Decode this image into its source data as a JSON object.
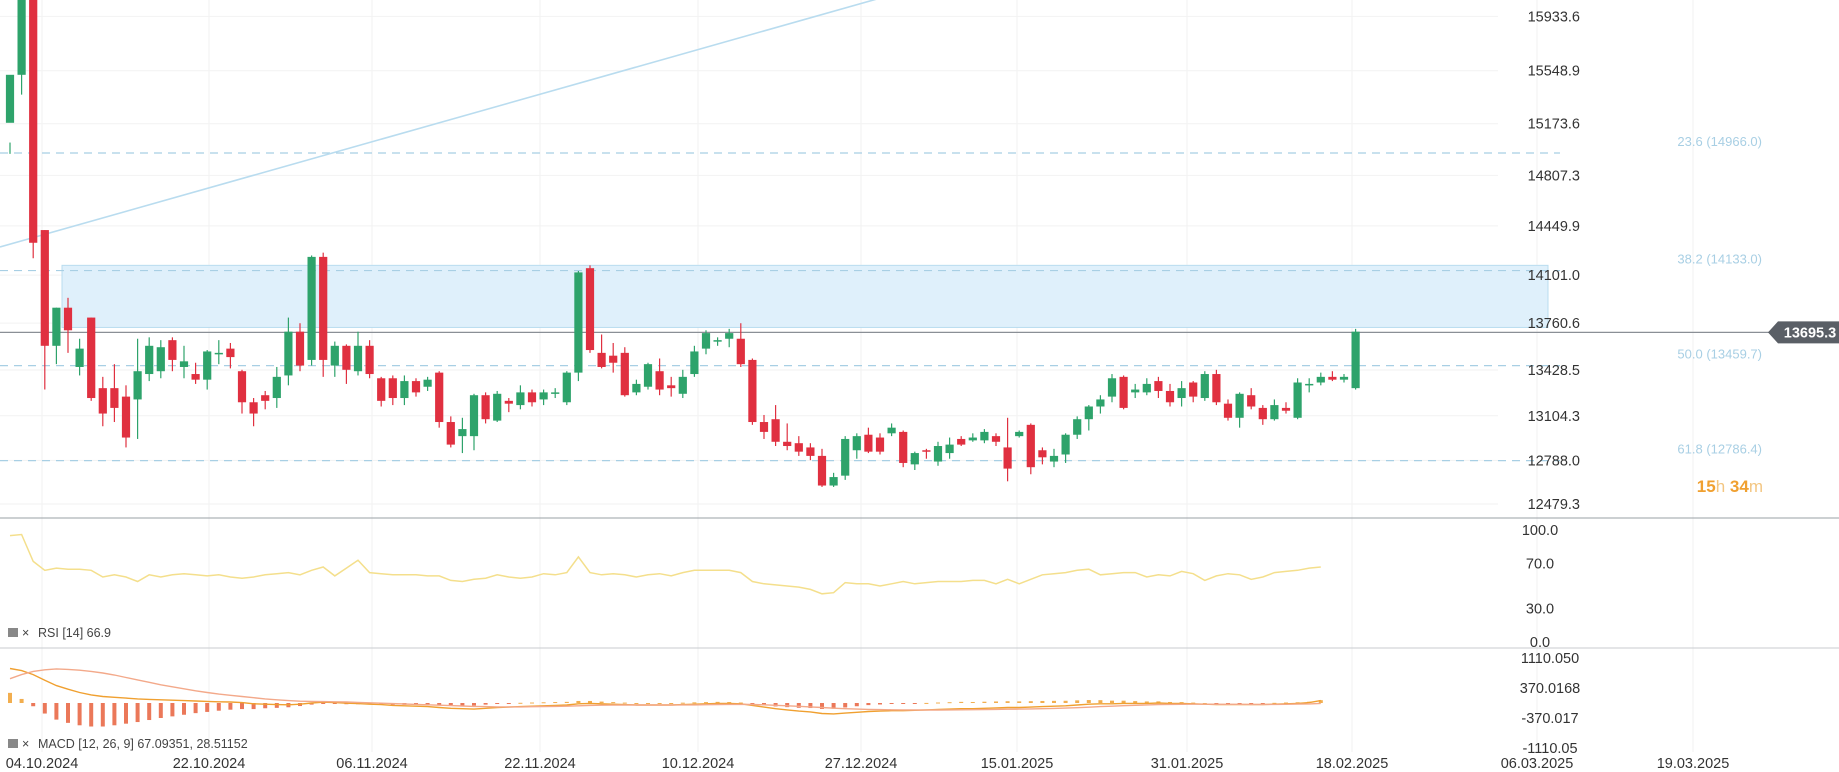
{
  "chart_data": {
    "type": "candlestick",
    "x_dates": [
      "04.10.2024",
      "22.10.2024",
      "06.11.2024",
      "22.11.2024",
      "10.12.2024",
      "27.12.2024",
      "15.01.2025",
      "31.01.2025",
      "18.02.2025",
      "06.03.2025",
      "19.03.2025"
    ],
    "price_ticks": [
      "15933.6",
      "15548.9",
      "15173.6",
      "14807.3",
      "14449.9",
      "14101.0",
      "13760.6",
      "13428.5",
      "13104.3",
      "12788.0",
      "12479.3"
    ],
    "current_price": "13695.3",
    "countdown": {
      "hours": "15",
      "h": "h",
      "minutes": "34",
      "m": "m"
    },
    "fib_levels": [
      {
        "label": "23.6 (14966.0)",
        "value": 14966.0
      },
      {
        "label": "38.2 (14133.0)",
        "value": 14133.0
      },
      {
        "label": "50.0 (13459.7)",
        "value": 13459.7
      },
      {
        "label": "61.8 (12786.4)",
        "value": 12786.4
      }
    ],
    "zone": {
      "top": 14170,
      "bottom": 13730
    },
    "trendline": {
      "from": {
        "x_index": 0,
        "price": 14300
      },
      "to": {
        "x_index": 80,
        "price": 16500
      }
    },
    "colors": {
      "up": "#2ea36b",
      "down": "#e03040",
      "fib": "#a8cfe4",
      "zone": "#dff0fb",
      "rsi": "#f4df8c",
      "macd_signal": "#f3a98a",
      "macd_line": "#f0a030",
      "badge": "#5a5f66"
    },
    "candles": [
      [
        15180,
        15520,
        15040,
        14960
      ],
      [
        15520,
        16330,
        15380,
        16330
      ],
      [
        16330,
        14330,
        16330,
        14220
      ],
      [
        14420,
        13600,
        14420,
        13290
      ],
      [
        13600,
        13870,
        13470,
        13870
      ],
      [
        13870,
        13710,
        13940,
        13550
      ],
      [
        13450,
        13580,
        13650,
        13390
      ],
      [
        13800,
        13230,
        13800,
        13210
      ],
      [
        13300,
        13120,
        13380,
        13030
      ],
      [
        13300,
        13160,
        13470,
        13060
      ],
      [
        13240,
        12950,
        13320,
        12880
      ],
      [
        13220,
        13420,
        13650,
        12940
      ],
      [
        13400,
        13600,
        13660,
        13350
      ],
      [
        13420,
        13590,
        13640,
        13370
      ],
      [
        13640,
        13500,
        13660,
        13420
      ],
      [
        13450,
        13490,
        13600,
        13370
      ],
      [
        13400,
        13360,
        13480,
        13330
      ],
      [
        13360,
        13560,
        13570,
        13290
      ],
      [
        13540,
        13550,
        13640,
        13470
      ],
      [
        13580,
        13520,
        13620,
        13440
      ],
      [
        13420,
        13200,
        13430,
        13120
      ],
      [
        13200,
        13120,
        13230,
        13030
      ],
      [
        13250,
        13210,
        13280,
        13150
      ],
      [
        13230,
        13380,
        13450,
        13160
      ],
      [
        13390,
        13700,
        13800,
        13320
      ],
      [
        13700,
        13460,
        13760,
        13420
      ],
      [
        13500,
        14230,
        14240,
        13460
      ],
      [
        14230,
        13500,
        14260,
        13380
      ],
      [
        13460,
        13600,
        13630,
        13380
      ],
      [
        13600,
        13430,
        13610,
        13330
      ],
      [
        13420,
        13600,
        13700,
        13390
      ],
      [
        13600,
        13400,
        13640,
        13370
      ],
      [
        13370,
        13210,
        13380,
        13170
      ],
      [
        13370,
        13230,
        13390,
        13180
      ],
      [
        13230,
        13350,
        13390,
        13180
      ],
      [
        13350,
        13270,
        13370,
        13240
      ],
      [
        13310,
        13360,
        13380,
        13280
      ],
      [
        13410,
        13060,
        13420,
        13020
      ],
      [
        13060,
        12900,
        13100,
        12880
      ],
      [
        12960,
        13010,
        13090,
        12840
      ],
      [
        12960,
        13250,
        13260,
        12860
      ],
      [
        13250,
        13080,
        13270,
        13050
      ],
      [
        13070,
        13260,
        13280,
        13060
      ],
      [
        13210,
        13190,
        13230,
        13130
      ],
      [
        13180,
        13270,
        13320,
        13150
      ],
      [
        13270,
        13200,
        13290,
        13170
      ],
      [
        13220,
        13270,
        13290,
        13180
      ],
      [
        13260,
        13270,
        13300,
        13230
      ],
      [
        13200,
        13410,
        13420,
        13180
      ],
      [
        13410,
        14120,
        14130,
        13350
      ],
      [
        14150,
        13570,
        14170,
        13550
      ],
      [
        13550,
        13450,
        13680,
        13440
      ],
      [
        13530,
        13480,
        13620,
        13410
      ],
      [
        13550,
        13250,
        13590,
        13240
      ],
      [
        13270,
        13330,
        13360,
        13250
      ],
      [
        13310,
        13470,
        13480,
        13290
      ],
      [
        13420,
        13290,
        13510,
        13250
      ],
      [
        13320,
        13300,
        13380,
        13240
      ],
      [
        13260,
        13380,
        13430,
        13230
      ],
      [
        13400,
        13560,
        13600,
        13380
      ],
      [
        13580,
        13690,
        13710,
        13540
      ],
      [
        13640,
        13640,
        13660,
        13600
      ],
      [
        13650,
        13690,
        13720,
        13590
      ],
      [
        13650,
        13470,
        13760,
        13450
      ],
      [
        13500,
        13060,
        13510,
        13040
      ],
      [
        13060,
        12990,
        13110,
        12940
      ],
      [
        13080,
        12920,
        13180,
        12890
      ],
      [
        12920,
        12890,
        13050,
        12860
      ],
      [
        12910,
        12850,
        12960,
        12820
      ],
      [
        12880,
        12820,
        12910,
        12790
      ],
      [
        12820,
        12610,
        12870,
        12600
      ],
      [
        12610,
        12670,
        12700,
        12600
      ],
      [
        12680,
        12940,
        12960,
        12650
      ],
      [
        12860,
        12960,
        12980,
        12800
      ],
      [
        12970,
        12850,
        13020,
        12840
      ],
      [
        12950,
        12850,
        12980,
        12830
      ],
      [
        12980,
        13020,
        13050,
        12960
      ],
      [
        12990,
        12770,
        13000,
        12740
      ],
      [
        12760,
        12840,
        12850,
        12720
      ],
      [
        12860,
        12850,
        12870,
        12800
      ],
      [
        12780,
        12890,
        12920,
        12750
      ],
      [
        12840,
        12900,
        12950,
        12800
      ],
      [
        12940,
        12900,
        12960,
        12890
      ],
      [
        12930,
        12950,
        12980,
        12920
      ],
      [
        12930,
        12990,
        13010,
        12910
      ],
      [
        12960,
        12920,
        12980,
        12890
      ],
      [
        12880,
        12730,
        13090,
        12640
      ],
      [
        12960,
        12990,
        13000,
        12950
      ],
      [
        13040,
        12740,
        13050,
        12690
      ],
      [
        12860,
        12810,
        12880,
        12760
      ],
      [
        12780,
        12820,
        12870,
        12740
      ],
      [
        12830,
        12970,
        12980,
        12770
      ],
      [
        12970,
        13080,
        13100,
        12940
      ],
      [
        13080,
        13170,
        13180,
        13000
      ],
      [
        13170,
        13220,
        13250,
        13120
      ],
      [
        13240,
        13370,
        13400,
        13200
      ],
      [
        13380,
        13160,
        13390,
        13150
      ],
      [
        13270,
        13290,
        13330,
        13230
      ],
      [
        13270,
        13330,
        13370,
        13250
      ],
      [
        13350,
        13280,
        13380,
        13230
      ],
      [
        13280,
        13200,
        13330,
        13170
      ],
      [
        13230,
        13300,
        13350,
        13170
      ],
      [
        13340,
        13240,
        13350,
        13200
      ],
      [
        13230,
        13400,
        13420,
        13210
      ],
      [
        13400,
        13200,
        13430,
        13180
      ],
      [
        13190,
        13090,
        13220,
        13070
      ],
      [
        13090,
        13260,
        13270,
        13020
      ],
      [
        13250,
        13170,
        13300,
        13150
      ],
      [
        13160,
        13080,
        13180,
        13040
      ],
      [
        13080,
        13180,
        13220,
        13070
      ],
      [
        13160,
        13140,
        13200,
        13120
      ],
      [
        13090,
        13340,
        13370,
        13080
      ],
      [
        13330,
        13330,
        13370,
        13270
      ],
      [
        13340,
        13380,
        13410,
        13320
      ],
      [
        13380,
        13360,
        13420,
        13350
      ],
      [
        13360,
        13380,
        13400,
        13340
      ],
      [
        13300,
        13700,
        13720,
        13290
      ]
    ],
    "rsi": {
      "label": "RSI",
      "params": "[14]",
      "value": "66.9",
      "ticks": [
        "100.0",
        "70.0",
        "30.0",
        "0.0"
      ],
      "values": [
        95,
        96,
        72,
        64,
        66,
        65,
        65,
        64,
        58,
        60,
        58,
        54,
        60,
        58,
        60,
        61,
        60,
        59,
        60,
        58,
        57,
        58,
        60,
        61,
        62,
        60,
        64,
        67,
        59,
        66,
        73,
        62,
        61,
        60,
        60,
        60,
        59,
        59,
        55,
        54,
        56,
        57,
        60,
        58,
        57,
        58,
        61,
        60,
        62,
        76,
        62,
        60,
        61,
        60,
        58,
        60,
        61,
        59,
        62,
        64,
        64,
        64,
        64,
        62,
        54,
        52,
        51,
        50,
        49,
        47,
        43,
        44,
        53,
        52,
        52,
        50,
        52,
        54,
        52,
        53,
        54,
        54,
        54,
        55,
        55,
        52,
        56,
        52,
        56,
        60,
        61,
        62,
        64,
        65,
        60,
        61,
        62,
        62,
        58,
        60,
        59,
        63,
        61,
        55,
        59,
        61,
        60,
        56,
        58,
        62,
        63,
        64,
        66,
        67
      ]
    },
    "macd": {
      "label": "MACD",
      "params": "[12, 26, 9]",
      "value1": "67.09351",
      "value2": "28.51152",
      "ticks": [
        "1110.050",
        "370.0168",
        "-370.017",
        "-1110.05"
      ],
      "macd_values": [
        850,
        800,
        700,
        560,
        430,
        340,
        260,
        200,
        160,
        140,
        120,
        100,
        90,
        80,
        70,
        60,
        50,
        40,
        30,
        25,
        10,
        -20,
        -30,
        -40,
        -45,
        -30,
        0,
        20,
        10,
        -5,
        -15,
        -30,
        -40,
        -60,
        -70,
        -80,
        -90,
        -110,
        -130,
        -140,
        -150,
        -130,
        -110,
        -100,
        -90,
        -80,
        -70,
        -60,
        -50,
        -20,
        -10,
        -20,
        -30,
        -40,
        -50,
        -50,
        -50,
        -50,
        -40,
        -30,
        -20,
        -10,
        -10,
        -20,
        -60,
        -100,
        -140,
        -170,
        -200,
        -220,
        -260,
        -270,
        -250,
        -230,
        -210,
        -200,
        -190,
        -190,
        -180,
        -170,
        -160,
        -150,
        -140,
        -140,
        -130,
        -120,
        -110,
        -110,
        -100,
        -90,
        -80,
        -70,
        -50,
        -30,
        -20,
        -20,
        -10,
        -10,
        -10,
        0,
        -10,
        -10,
        -20,
        -30,
        -40,
        -40,
        -40,
        -40,
        -40,
        -30,
        -20,
        -10,
        10,
        60
      ],
      "signal_values": [
        600,
        700,
        780,
        820,
        840,
        830,
        810,
        780,
        740,
        690,
        630,
        570,
        510,
        450,
        400,
        350,
        300,
        260,
        220,
        190,
        160,
        130,
        100,
        80,
        60,
        45,
        40,
        35,
        30,
        25,
        15,
        5,
        -5,
        -15,
        -25,
        -35,
        -45,
        -55,
        -65,
        -75,
        -85,
        -90,
        -95,
        -95,
        -95,
        -92,
        -88,
        -84,
        -78,
        -70,
        -60,
        -55,
        -52,
        -50,
        -50,
        -50,
        -50,
        -50,
        -48,
        -46,
        -42,
        -38,
        -34,
        -32,
        -36,
        -45,
        -56,
        -68,
        -82,
        -96,
        -112,
        -128,
        -140,
        -150,
        -158,
        -163,
        -167,
        -170,
        -172,
        -172,
        -172,
        -170,
        -168,
        -165,
        -162,
        -158,
        -154,
        -150,
        -145,
        -140,
        -133,
        -125,
        -115,
        -103,
        -90,
        -78,
        -67,
        -57,
        -48,
        -40,
        -35,
        -32,
        -30,
        -30,
        -31,
        -32,
        -33,
        -34,
        -35,
        -34,
        -32,
        -28,
        -22,
        -10
      ]
    }
  }
}
